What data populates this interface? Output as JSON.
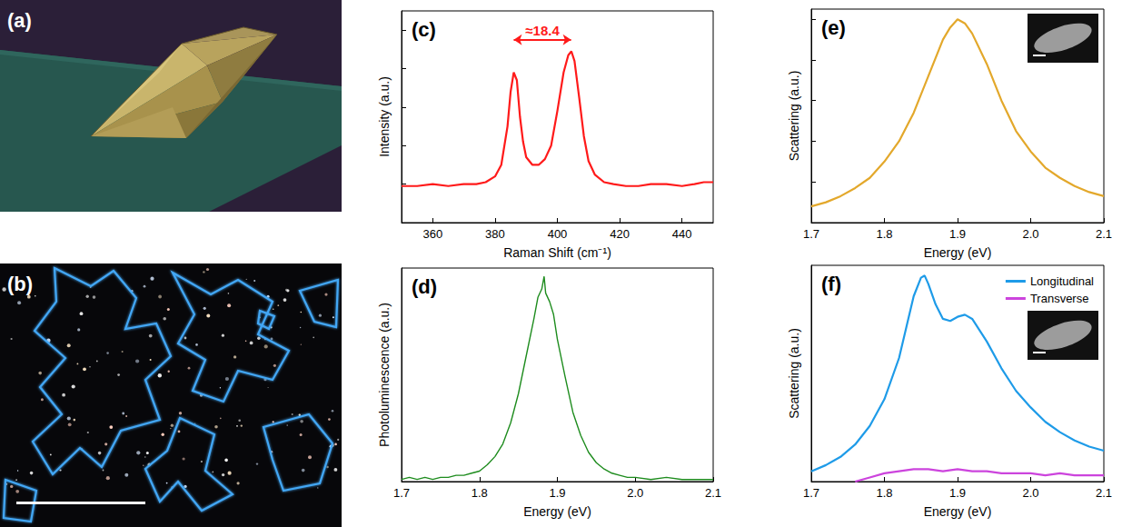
{
  "images": [
    {
      "label": "(a)"
    },
    {
      "label": "(b)"
    }
  ],
  "chart_data": [
    {
      "type": "line",
      "title": "(c)",
      "x_label": "Raman Shift (cm⁻¹)",
      "y_label": "Intensity (a.u.)",
      "x": [
        350,
        355,
        360,
        365,
        370,
        374,
        377,
        380,
        382,
        384,
        385,
        386,
        387,
        388,
        389,
        390,
        392,
        394,
        396,
        398,
        400,
        402,
        403.5,
        404.5,
        405.5,
        407,
        408.5,
        410,
        412,
        415,
        418,
        422,
        426,
        430,
        435,
        440,
        444,
        447,
        450
      ],
      "values": [
        0.19,
        0.19,
        0.2,
        0.19,
        0.2,
        0.2,
        0.21,
        0.24,
        0.3,
        0.5,
        0.68,
        0.78,
        0.74,
        0.55,
        0.42,
        0.34,
        0.3,
        0.3,
        0.33,
        0.4,
        0.58,
        0.78,
        0.87,
        0.89,
        0.84,
        0.65,
        0.45,
        0.32,
        0.25,
        0.21,
        0.2,
        0.19,
        0.19,
        0.2,
        0.2,
        0.19,
        0.2,
        0.21,
        0.21
      ],
      "color": "#ff1a1a",
      "xlim": [
        350,
        450
      ],
      "xticks": [
        360,
        380,
        400,
        420,
        440
      ],
      "ylim": [
        0,
        1.1
      ],
      "yticks": [
        0,
        0.2,
        0.4,
        0.6,
        0.8,
        1
      ],
      "tick_labels": "x",
      "grid": false,
      "annotations": [
        {
          "text": "≈18.4",
          "x": [
            386,
            404.4
          ],
          "y": 0.95,
          "color": "#ff1a1a"
        }
      ]
    },
    {
      "type": "line",
      "title": "(d)",
      "x_label": "Energy (eV)",
      "y_label": "Photoluminescence (a.u.)",
      "x": [
        1.7,
        1.71,
        1.72,
        1.73,
        1.74,
        1.75,
        1.76,
        1.77,
        1.78,
        1.79,
        1.8,
        1.81,
        1.82,
        1.83,
        1.84,
        1.85,
        1.86,
        1.87,
        1.875,
        1.88,
        1.883,
        1.885,
        1.89,
        1.895,
        1.9,
        1.91,
        1.92,
        1.93,
        1.94,
        1.95,
        1.96,
        1.97,
        1.98,
        1.99,
        2,
        2.02,
        2.04,
        2.06,
        2.08,
        2.1
      ],
      "values": [
        0.01,
        0.02,
        0.01,
        0.02,
        0.01,
        0.02,
        0.02,
        0.03,
        0.03,
        0.04,
        0.05,
        0.08,
        0.12,
        0.18,
        0.28,
        0.42,
        0.6,
        0.78,
        0.88,
        0.92,
        0.98,
        0.9,
        0.86,
        0.8,
        0.68,
        0.5,
        0.33,
        0.22,
        0.14,
        0.09,
        0.06,
        0.04,
        0.03,
        0.02,
        0.02,
        0.01,
        0.02,
        0.01,
        0.01,
        0.01
      ],
      "color": "#1e8c1e",
      "xlim": [
        1.7,
        2.1
      ],
      "xticks": [
        1.7,
        1.8,
        1.9,
        {
          "value": 2,
          "label": "2.0"
        },
        2.1
      ],
      "ylim": [
        0,
        1.02
      ],
      "tick_labels": "x",
      "grid": false
    },
    {
      "type": "line",
      "title": "(e)",
      "x_label": "Energy (eV)",
      "y_label": "Scattering (a.u.)",
      "x": [
        1.7,
        1.72,
        1.74,
        1.76,
        1.78,
        1.8,
        1.82,
        1.84,
        1.86,
        1.88,
        1.89,
        1.9,
        1.91,
        1.92,
        1.94,
        1.96,
        1.98,
        2,
        2.02,
        2.04,
        2.06,
        2.08,
        2.1
      ],
      "values": [
        0.08,
        0.1,
        0.13,
        0.17,
        0.22,
        0.3,
        0.4,
        0.54,
        0.72,
        0.9,
        0.96,
        1.0,
        0.98,
        0.93,
        0.78,
        0.6,
        0.45,
        0.35,
        0.27,
        0.22,
        0.18,
        0.15,
        0.13
      ],
      "color": "#e3a82b",
      "xlim": [
        1.7,
        2.1
      ],
      "xticks": [
        1.7,
        1.8,
        1.9,
        {
          "value": 2,
          "label": "2.0"
        },
        2.1
      ],
      "ylim": [
        0,
        1.05
      ],
      "yticks": [
        0,
        0.2,
        0.4,
        0.6,
        0.8,
        1
      ],
      "tick_labels": "x",
      "grid": false
    },
    {
      "type": "line",
      "title": "(f)",
      "x_label": "Energy (eV)",
      "y_label": "Scattering (a.u.)",
      "series": [
        {
          "name": "Longitudinal",
          "color": "#1e9be8",
          "x": [
            1.7,
            1.72,
            1.74,
            1.76,
            1.78,
            1.8,
            1.82,
            1.83,
            1.84,
            1.85,
            1.855,
            1.86,
            1.87,
            1.88,
            1.89,
            1.9,
            1.91,
            1.92,
            1.94,
            1.96,
            1.98,
            2,
            2.02,
            2.04,
            2.06,
            2.08,
            2.1
          ],
          "values": [
            0.05,
            0.08,
            0.12,
            0.18,
            0.27,
            0.4,
            0.6,
            0.75,
            0.9,
            0.99,
            1.0,
            0.96,
            0.86,
            0.79,
            0.78,
            0.8,
            0.81,
            0.79,
            0.68,
            0.55,
            0.44,
            0.36,
            0.29,
            0.24,
            0.2,
            0.17,
            0.15
          ]
        },
        {
          "name": "Transverse",
          "color": "#cc44dd",
          "x": [
            1.76,
            1.78,
            1.8,
            1.82,
            1.84,
            1.86,
            1.88,
            1.9,
            1.92,
            1.94,
            1.96,
            1.98,
            2,
            2.02,
            2.04,
            2.06,
            2.08,
            2.1
          ],
          "values": [
            0.0,
            0.02,
            0.04,
            0.05,
            0.06,
            0.06,
            0.05,
            0.06,
            0.05,
            0.05,
            0.04,
            0.04,
            0.04,
            0.03,
            0.04,
            0.03,
            0.03,
            0.03
          ]
        }
      ],
      "xlim": [
        1.7,
        2.1
      ],
      "xticks": [
        1.7,
        1.8,
        1.9,
        {
          "value": 2,
          "label": "2.0"
        },
        2.1
      ],
      "ylim": [
        0,
        1.05
      ],
      "tick_labels": "x",
      "grid": false,
      "legend": "upper right"
    }
  ]
}
